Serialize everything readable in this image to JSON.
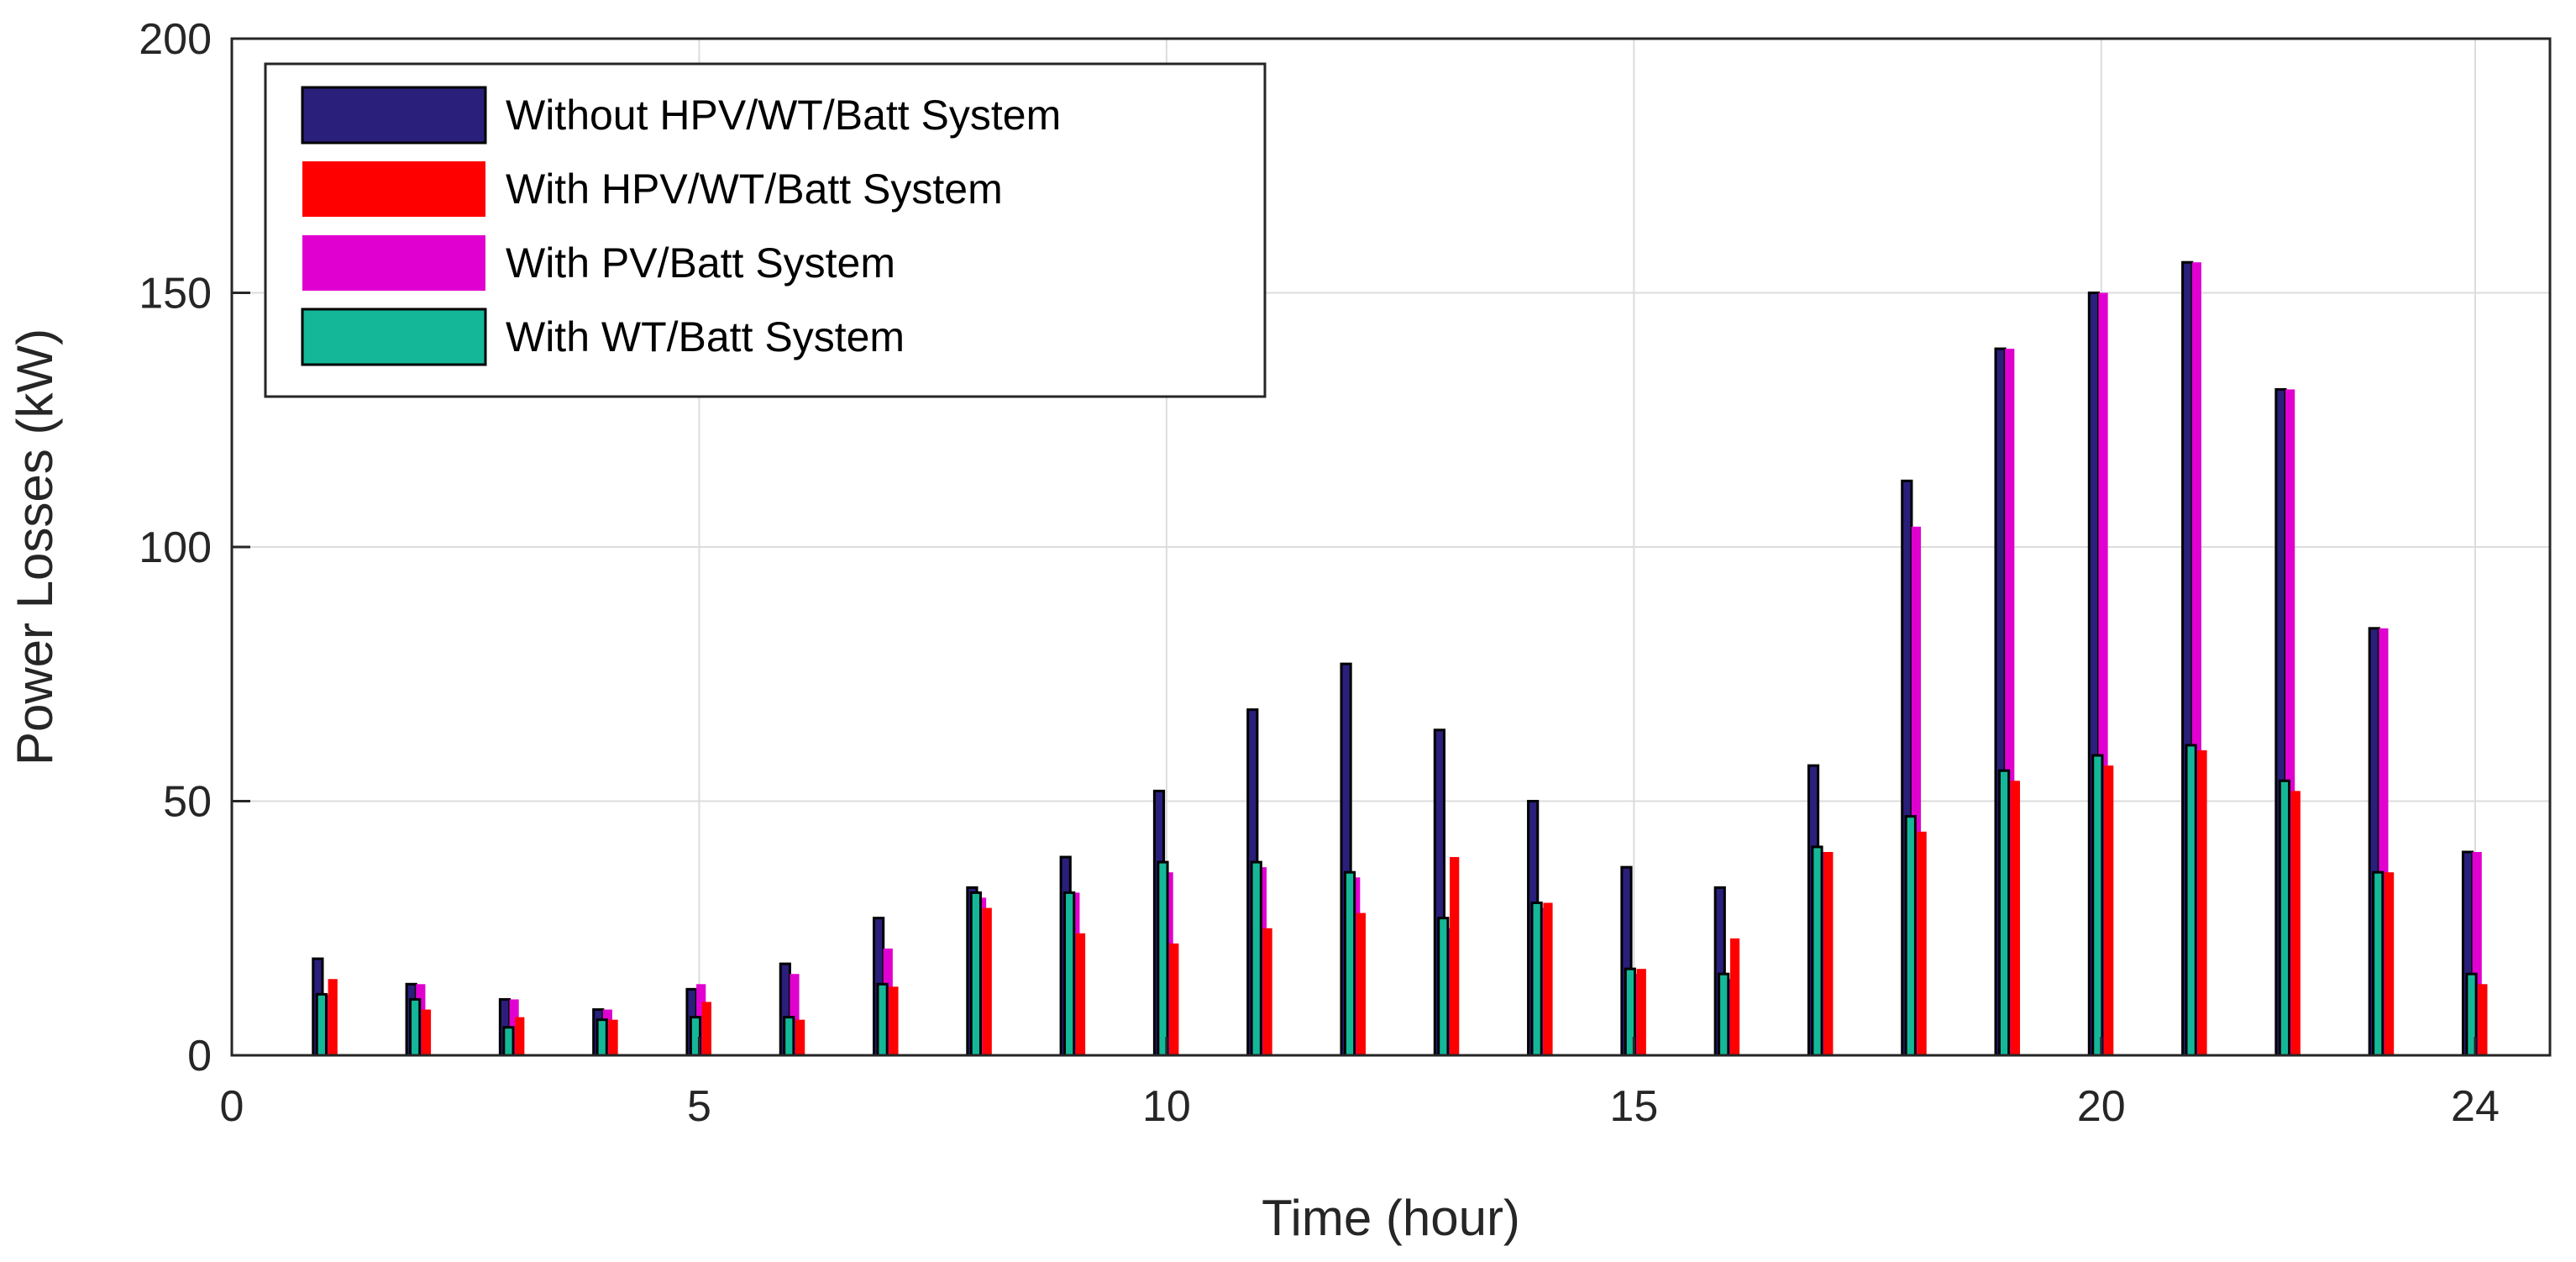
{
  "chart_data": {
    "type": "bar",
    "title": "",
    "xlabel": "Time (hour)",
    "ylabel": "Power Losses (kW)",
    "xlim": [
      0,
      24.8
    ],
    "ylim": [
      0,
      200
    ],
    "xticks": [
      0,
      5,
      10,
      15,
      20,
      24
    ],
    "yticks": [
      0,
      50,
      100,
      150,
      200
    ],
    "grid": true,
    "legend_position": "top-left",
    "categories": [
      1,
      2,
      3,
      4,
      5,
      6,
      7,
      8,
      9,
      10,
      11,
      12,
      13,
      14,
      15,
      16,
      17,
      18,
      19,
      20,
      21,
      22,
      23,
      24
    ],
    "series": [
      {
        "name": "Without HPV/WT/Batt System",
        "color": "#2a1f7a",
        "values": [
          19,
          14,
          11,
          9,
          13,
          18,
          27,
          33,
          39,
          52,
          68,
          77,
          64,
          50,
          37,
          33,
          57,
          113,
          139,
          150,
          156,
          131,
          84,
          40
        ]
      },
      {
        "name": "With HPV/WT/Batt System",
        "color": "#ff0000",
        "values": [
          15,
          9,
          7.5,
          7,
          10.5,
          7,
          13.5,
          29,
          24,
          22,
          25,
          28,
          39,
          30,
          17,
          23,
          40,
          44,
          54,
          57,
          60,
          52,
          36,
          14
        ]
      },
      {
        "name": "With PV/Batt System",
        "color": "#e000d0",
        "values": [
          12,
          14,
          11,
          9,
          14,
          16,
          21,
          31,
          32,
          36,
          37,
          35,
          25,
          29,
          16,
          15,
          40,
          104,
          139,
          150,
          156,
          131,
          84,
          40
        ]
      },
      {
        "name": "With WT/Batt System",
        "color": "#14b898",
        "values": [
          12,
          11,
          5.5,
          7,
          7.5,
          7.5,
          14,
          32,
          32,
          38,
          38,
          36,
          27,
          30,
          17,
          16,
          41,
          47,
          56,
          59,
          61,
          54,
          36,
          16
        ]
      }
    ]
  }
}
